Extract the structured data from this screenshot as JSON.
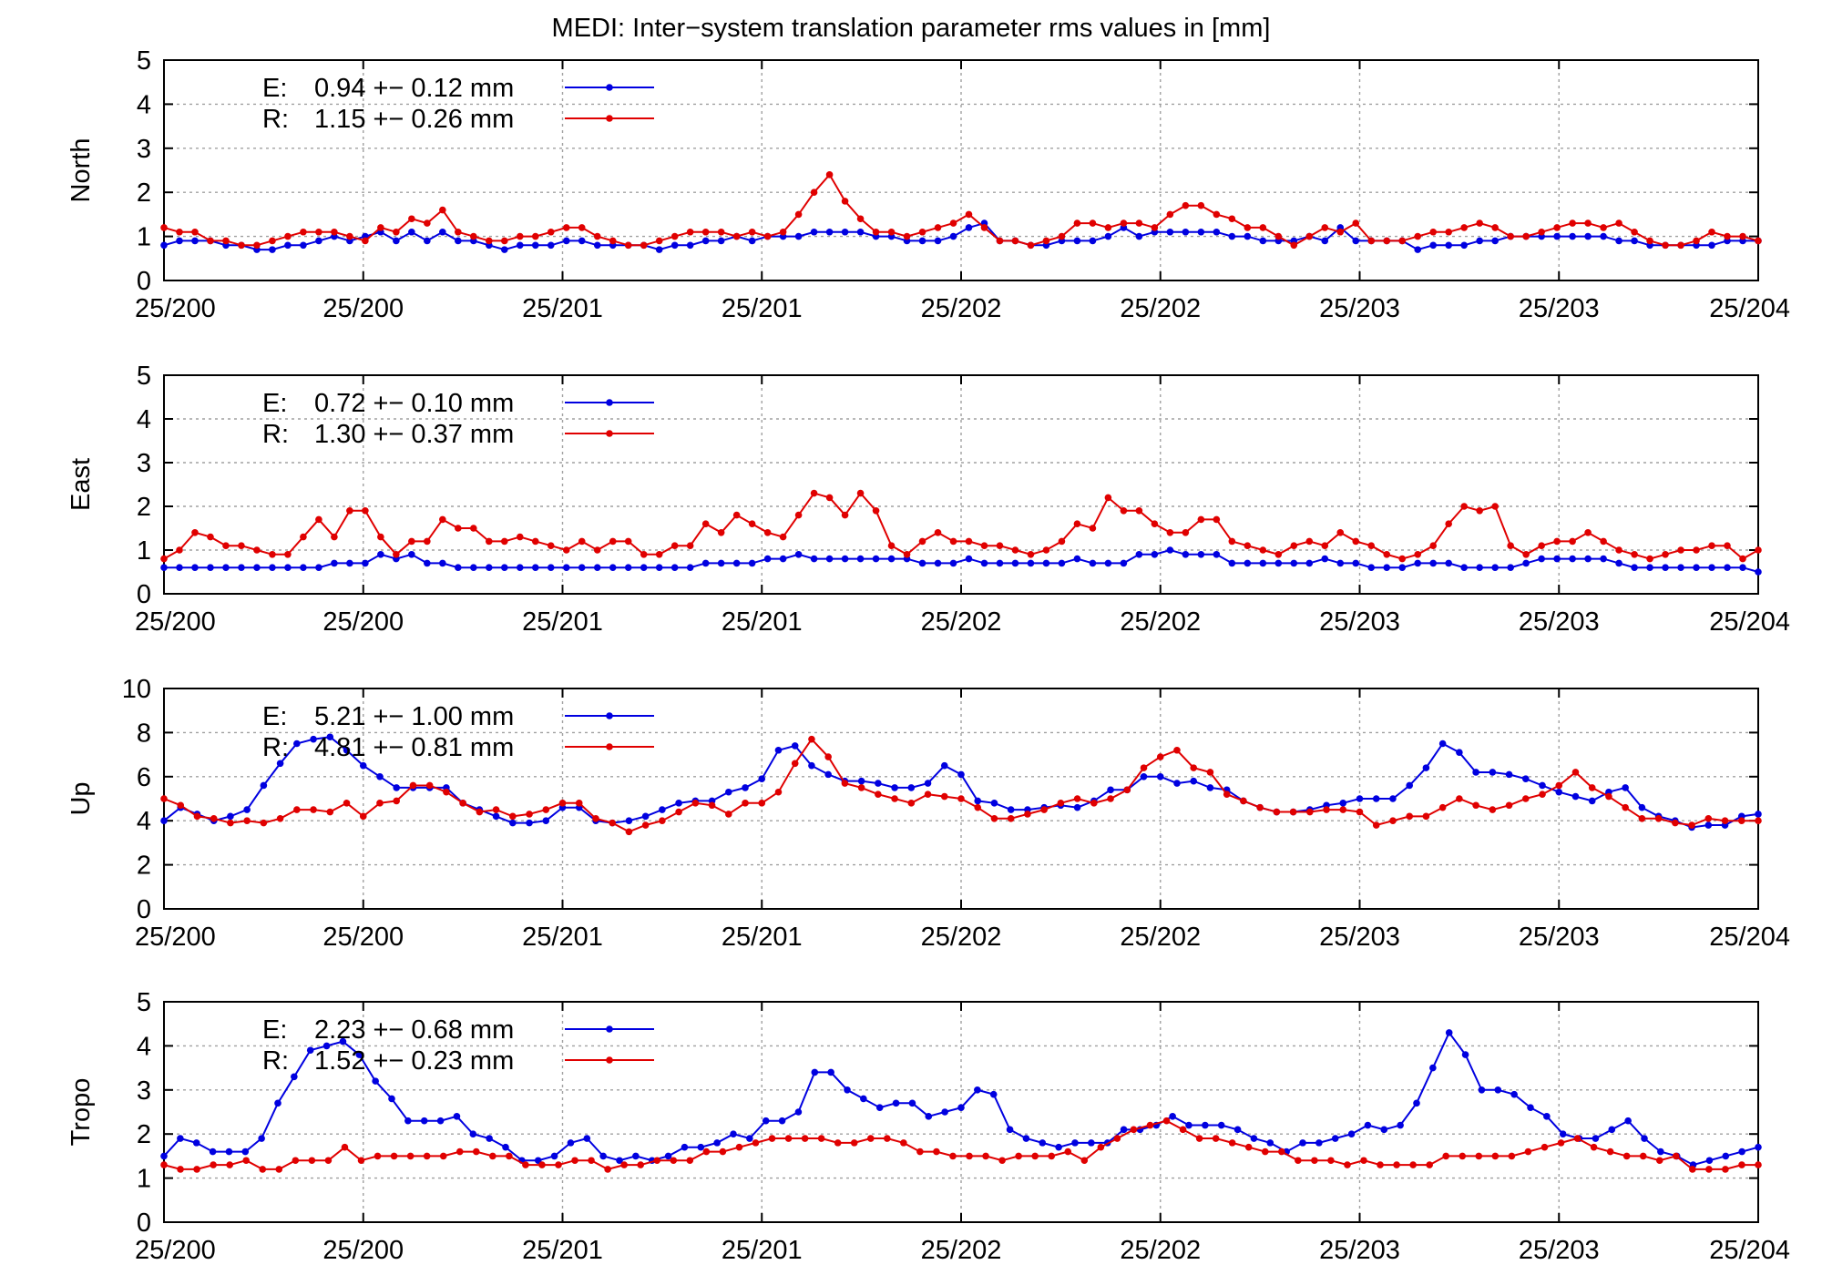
{
  "title": "MEDI: Inter−system translation parameter rms values in [mm]",
  "colors": {
    "E": "#0000e0",
    "R": "#e00000",
    "grid": "#a0a0a0",
    "axis": "#000000"
  },
  "chart_data": [
    {
      "type": "line",
      "ylabel": "North",
      "ylim": [
        0,
        5
      ],
      "yticks": [
        0,
        1,
        2,
        3,
        4,
        5
      ],
      "xtick_labels": [
        "25/200",
        "25/200",
        "25/201",
        "25/201",
        "25/202",
        "25/202",
        "25/203",
        "25/203",
        "25/204"
      ],
      "grid": true,
      "legend_position": "top-left",
      "series": [
        {
          "key": "E",
          "label": "E:",
          "stat": "0.94 +− 0.12 mm",
          "values": [
            0.8,
            0.9,
            0.9,
            0.9,
            0.8,
            0.8,
            0.7,
            0.7,
            0.8,
            0.8,
            0.9,
            1.0,
            0.9,
            1.0,
            1.1,
            0.9,
            1.1,
            0.9,
            1.1,
            0.9,
            0.9,
            0.8,
            0.7,
            0.8,
            0.8,
            0.8,
            0.9,
            0.9,
            0.8,
            0.8,
            0.8,
            0.8,
            0.7,
            0.8,
            0.8,
            0.9,
            0.9,
            1.0,
            0.9,
            1.0,
            1.0,
            1.0,
            1.1,
            1.1,
            1.1,
            1.1,
            1.0,
            1.0,
            0.9,
            0.9,
            0.9,
            1.0,
            1.2,
            1.3,
            0.9,
            0.9,
            0.8,
            0.8,
            0.9,
            0.9,
            0.9,
            1.0,
            1.2,
            1.0,
            1.1,
            1.1,
            1.1,
            1.1,
            1.1,
            1.0,
            1.0,
            0.9,
            0.9,
            0.9,
            1.0,
            0.9,
            1.2,
            0.9,
            0.9,
            0.9,
            0.9,
            0.7,
            0.8,
            0.8,
            0.8,
            0.9,
            0.9,
            1.0,
            1.0,
            1.0,
            1.0,
            1.0,
            1.0,
            1.0,
            0.9,
            0.9,
            0.8,
            0.8,
            0.8,
            0.8,
            0.8,
            0.9,
            0.9,
            0.9
          ]
        },
        {
          "key": "R",
          "label": "R:",
          "stat": "1.15 +− 0.26 mm",
          "values": [
            1.2,
            1.1,
            1.1,
            0.9,
            0.9,
            0.8,
            0.8,
            0.9,
            1.0,
            1.1,
            1.1,
            1.1,
            1.0,
            0.9,
            1.2,
            1.1,
            1.4,
            1.3,
            1.6,
            1.1,
            1.0,
            0.9,
            0.9,
            1.0,
            1.0,
            1.1,
            1.2,
            1.2,
            1.0,
            0.9,
            0.8,
            0.8,
            0.9,
            1.0,
            1.1,
            1.1,
            1.1,
            1.0,
            1.1,
            1.0,
            1.1,
            1.5,
            2.0,
            2.4,
            1.8,
            1.4,
            1.1,
            1.1,
            1.0,
            1.1,
            1.2,
            1.3,
            1.5,
            1.2,
            0.9,
            0.9,
            0.8,
            0.9,
            1.0,
            1.3,
            1.3,
            1.2,
            1.3,
            1.3,
            1.2,
            1.5,
            1.7,
            1.7,
            1.5,
            1.4,
            1.2,
            1.2,
            1.0,
            0.8,
            1.0,
            1.2,
            1.1,
            1.3,
            0.9,
            0.9,
            0.9,
            1.0,
            1.1,
            1.1,
            1.2,
            1.3,
            1.2,
            1.0,
            1.0,
            1.1,
            1.2,
            1.3,
            1.3,
            1.2,
            1.3,
            1.1,
            0.9,
            0.8,
            0.8,
            0.9,
            1.1,
            1.0,
            1.0,
            0.9
          ]
        }
      ]
    },
    {
      "type": "line",
      "ylabel": "East",
      "ylim": [
        0,
        5
      ],
      "yticks": [
        0,
        1,
        2,
        3,
        4,
        5
      ],
      "xtick_labels": [
        "25/200",
        "25/200",
        "25/201",
        "25/201",
        "25/202",
        "25/202",
        "25/203",
        "25/203",
        "25/204"
      ],
      "grid": true,
      "legend_position": "top-left",
      "series": [
        {
          "key": "E",
          "label": "E:",
          "stat": "0.72 +− 0.10 mm",
          "values": [
            0.6,
            0.6,
            0.6,
            0.6,
            0.6,
            0.6,
            0.6,
            0.6,
            0.6,
            0.6,
            0.6,
            0.7,
            0.7,
            0.7,
            0.9,
            0.8,
            0.9,
            0.7,
            0.7,
            0.6,
            0.6,
            0.6,
            0.6,
            0.6,
            0.6,
            0.6,
            0.6,
            0.6,
            0.6,
            0.6,
            0.6,
            0.6,
            0.6,
            0.6,
            0.6,
            0.7,
            0.7,
            0.7,
            0.7,
            0.8,
            0.8,
            0.9,
            0.8,
            0.8,
            0.8,
            0.8,
            0.8,
            0.8,
            0.8,
            0.7,
            0.7,
            0.7,
            0.8,
            0.7,
            0.7,
            0.7,
            0.7,
            0.7,
            0.7,
            0.8,
            0.7,
            0.7,
            0.7,
            0.9,
            0.9,
            1.0,
            0.9,
            0.9,
            0.9,
            0.7,
            0.7,
            0.7,
            0.7,
            0.7,
            0.7,
            0.8,
            0.7,
            0.7,
            0.6,
            0.6,
            0.6,
            0.7,
            0.7,
            0.7,
            0.6,
            0.6,
            0.6,
            0.6,
            0.7,
            0.8,
            0.8,
            0.8,
            0.8,
            0.8,
            0.7,
            0.6,
            0.6,
            0.6,
            0.6,
            0.6,
            0.6,
            0.6,
            0.6,
            0.5
          ]
        },
        {
          "key": "R",
          "label": "R:",
          "stat": "1.30 +− 0.37 mm",
          "values": [
            0.8,
            1.0,
            1.4,
            1.3,
            1.1,
            1.1,
            1.0,
            0.9,
            0.9,
            1.3,
            1.7,
            1.3,
            1.9,
            1.9,
            1.3,
            0.9,
            1.2,
            1.2,
            1.7,
            1.5,
            1.5,
            1.2,
            1.2,
            1.3,
            1.2,
            1.1,
            1.0,
            1.2,
            1.0,
            1.2,
            1.2,
            0.9,
            0.9,
            1.1,
            1.1,
            1.6,
            1.4,
            1.8,
            1.6,
            1.4,
            1.3,
            1.8,
            2.3,
            2.2,
            1.8,
            2.3,
            1.9,
            1.1,
            0.9,
            1.2,
            1.4,
            1.2,
            1.2,
            1.1,
            1.1,
            1.0,
            0.9,
            1.0,
            1.2,
            1.6,
            1.5,
            2.2,
            1.9,
            1.9,
            1.6,
            1.4,
            1.4,
            1.7,
            1.7,
            1.2,
            1.1,
            1.0,
            0.9,
            1.1,
            1.2,
            1.1,
            1.4,
            1.2,
            1.1,
            0.9,
            0.8,
            0.9,
            1.1,
            1.6,
            2.0,
            1.9,
            2.0,
            1.1,
            0.9,
            1.1,
            1.2,
            1.2,
            1.4,
            1.2,
            1.0,
            0.9,
            0.8,
            0.9,
            1.0,
            1.0,
            1.1,
            1.1,
            0.8,
            1.0
          ]
        }
      ]
    },
    {
      "type": "line",
      "ylabel": "Up",
      "ylim": [
        0,
        10
      ],
      "yticks": [
        0,
        2,
        4,
        6,
        8,
        10
      ],
      "xtick_labels": [
        "25/200",
        "25/200",
        "25/201",
        "25/201",
        "25/202",
        "25/202",
        "25/203",
        "25/203",
        "25/204"
      ],
      "grid": true,
      "legend_position": "top-left",
      "series": [
        {
          "key": "E",
          "label": "E:",
          "stat": "5.21 +− 1.00 mm",
          "values": [
            4.0,
            4.6,
            4.3,
            4.0,
            4.2,
            4.5,
            5.6,
            6.6,
            7.5,
            7.7,
            7.8,
            7.2,
            6.5,
            6.0,
            5.5,
            5.5,
            5.5,
            5.5,
            4.8,
            4.5,
            4.2,
            3.9,
            3.9,
            4.0,
            4.6,
            4.6,
            4.0,
            3.9,
            4.0,
            4.2,
            4.5,
            4.8,
            4.9,
            4.9,
            5.3,
            5.5,
            5.9,
            7.2,
            7.4,
            6.5,
            6.1,
            5.8,
            5.8,
            5.7,
            5.5,
            5.5,
            5.7,
            6.5,
            6.1,
            4.9,
            4.8,
            4.5,
            4.5,
            4.6,
            4.7,
            4.6,
            4.9,
            5.4,
            5.4,
            6.0,
            6.0,
            5.7,
            5.8,
            5.5,
            5.4,
            4.9,
            4.6,
            4.4,
            4.4,
            4.5,
            4.7,
            4.8,
            5.0,
            5.0,
            5.0,
            5.6,
            6.4,
            7.5,
            7.1,
            6.2,
            6.2,
            6.1,
            5.9,
            5.6,
            5.3,
            5.1,
            4.9,
            5.3,
            5.5,
            4.6,
            4.2,
            4.0,
            3.7,
            3.8,
            3.8,
            4.2,
            4.3
          ]
        },
        {
          "key": "R",
          "label": "R:",
          "stat": "4.81 +− 0.81 mm",
          "values": [
            5.0,
            4.7,
            4.2,
            4.1,
            3.9,
            4.0,
            3.9,
            4.1,
            4.5,
            4.5,
            4.4,
            4.8,
            4.2,
            4.8,
            4.9,
            5.6,
            5.6,
            5.3,
            4.8,
            4.4,
            4.5,
            4.2,
            4.3,
            4.5,
            4.8,
            4.8,
            4.1,
            3.9,
            3.5,
            3.8,
            4.0,
            4.4,
            4.8,
            4.7,
            4.3,
            4.8,
            4.8,
            5.3,
            6.6,
            7.7,
            6.9,
            5.7,
            5.5,
            5.2,
            5.0,
            4.8,
            5.2,
            5.1,
            5.0,
            4.6,
            4.1,
            4.1,
            4.3,
            4.5,
            4.8,
            5.0,
            4.8,
            5.0,
            5.4,
            6.4,
            6.9,
            7.2,
            6.4,
            6.2,
            5.2,
            4.9,
            4.6,
            4.4,
            4.4,
            4.4,
            4.5,
            4.5,
            4.4,
            3.8,
            4.0,
            4.2,
            4.2,
            4.6,
            5.0,
            4.7,
            4.5,
            4.7,
            5.0,
            5.2,
            5.6,
            6.2,
            5.5,
            5.1,
            4.6,
            4.1,
            4.1,
            3.9,
            3.8,
            4.1,
            4.0,
            4.0,
            4.0
          ]
        }
      ]
    },
    {
      "type": "line",
      "ylabel": "Tropo",
      "ylim": [
        0,
        5
      ],
      "yticks": [
        0,
        1,
        2,
        3,
        4,
        5
      ],
      "xtick_labels": [
        "25/200",
        "25/200",
        "25/201",
        "25/201",
        "25/202",
        "25/202",
        "25/203",
        "25/203",
        "25/204"
      ],
      "grid": true,
      "legend_position": "top-left",
      "series": [
        {
          "key": "E",
          "label": "E:",
          "stat": "2.23 +− 0.68 mm",
          "values": [
            1.5,
            1.9,
            1.8,
            1.6,
            1.6,
            1.6,
            1.9,
            2.7,
            3.3,
            3.9,
            4.0,
            4.1,
            3.8,
            3.2,
            2.8,
            2.3,
            2.3,
            2.3,
            2.4,
            2.0,
            1.9,
            1.7,
            1.4,
            1.4,
            1.5,
            1.8,
            1.9,
            1.5,
            1.4,
            1.5,
            1.4,
            1.5,
            1.7,
            1.7,
            1.8,
            2.0,
            1.9,
            2.3,
            2.3,
            2.5,
            3.4,
            3.4,
            3.0,
            2.8,
            2.6,
            2.7,
            2.7,
            2.4,
            2.5,
            2.6,
            3.0,
            2.9,
            2.1,
            1.9,
            1.8,
            1.7,
            1.8,
            1.8,
            1.8,
            2.1,
            2.1,
            2.2,
            2.4,
            2.2,
            2.2,
            2.2,
            2.1,
            1.9,
            1.8,
            1.6,
            1.8,
            1.8,
            1.9,
            2.0,
            2.2,
            2.1,
            2.2,
            2.7,
            3.5,
            4.3,
            3.8,
            3.0,
            3.0,
            2.9,
            2.6,
            2.4,
            2.0,
            1.9,
            1.9,
            2.1,
            2.3,
            1.9,
            1.6,
            1.5,
            1.3,
            1.4,
            1.5,
            1.6,
            1.7
          ]
        },
        {
          "key": "R",
          "label": "R:",
          "stat": "1.52 +− 0.23 mm",
          "values": [
            1.3,
            1.2,
            1.2,
            1.3,
            1.3,
            1.4,
            1.2,
            1.2,
            1.4,
            1.4,
            1.4,
            1.7,
            1.4,
            1.5,
            1.5,
            1.5,
            1.5,
            1.5,
            1.6,
            1.6,
            1.5,
            1.5,
            1.3,
            1.3,
            1.3,
            1.4,
            1.4,
            1.2,
            1.3,
            1.3,
            1.4,
            1.4,
            1.4,
            1.6,
            1.6,
            1.7,
            1.8,
            1.9,
            1.9,
            1.9,
            1.9,
            1.8,
            1.8,
            1.9,
            1.9,
            1.8,
            1.6,
            1.6,
            1.5,
            1.5,
            1.5,
            1.4,
            1.5,
            1.5,
            1.5,
            1.6,
            1.4,
            1.7,
            1.9,
            2.1,
            2.2,
            2.3,
            2.1,
            1.9,
            1.9,
            1.8,
            1.7,
            1.6,
            1.6,
            1.4,
            1.4,
            1.4,
            1.3,
            1.4,
            1.3,
            1.3,
            1.3,
            1.3,
            1.5,
            1.5,
            1.5,
            1.5,
            1.5,
            1.6,
            1.7,
            1.8,
            1.9,
            1.7,
            1.6,
            1.5,
            1.5,
            1.4,
            1.5,
            1.2,
            1.2,
            1.2,
            1.3,
            1.3
          ]
        }
      ]
    }
  ]
}
